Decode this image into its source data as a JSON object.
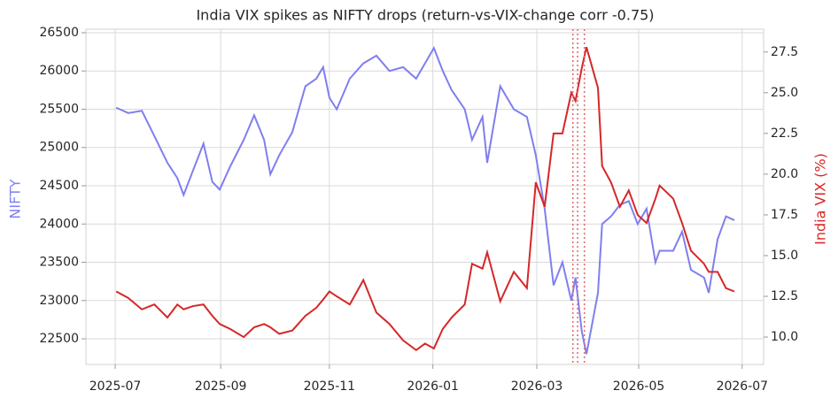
{
  "chart_data": {
    "type": "line",
    "title": "India VIX spikes as NIFTY drops (return-vs-VIX-change corr -0.75)",
    "ylabel": "NIFTY",
    "y2label": "India VIX (%)",
    "x": [
      0.02,
      0.25,
      0.51,
      0.75,
      1.0,
      1.19,
      1.31,
      1.49,
      1.69,
      1.86,
      2.0,
      2.2,
      2.46,
      2.66,
      2.85,
      2.97,
      3.14,
      3.39,
      3.64,
      3.85,
      3.98,
      4.1,
      4.24,
      4.49,
      4.75,
      5.0,
      5.25,
      5.51,
      5.76,
      5.93,
      6.1,
      6.27,
      6.44,
      6.69,
      6.83,
      7.03,
      7.12,
      7.37,
      7.63,
      7.88,
      8.05,
      8.22,
      8.39,
      8.56,
      8.73,
      8.81,
      8.93,
      9.02,
      9.24,
      9.32,
      9.49,
      9.66,
      9.83,
      10.0,
      10.17,
      10.34,
      10.42,
      10.68,
      10.85,
      11.02,
      11.27,
      11.36,
      11.53,
      11.69,
      11.85
    ],
    "series": [
      {
        "name": "NIFTY",
        "color": "#7f7fef",
        "axis": "y",
        "values": [
          25520,
          25450,
          25480,
          25150,
          24800,
          24600,
          24380,
          24700,
          25050,
          24550,
          24450,
          24750,
          25100,
          25420,
          25100,
          24650,
          24900,
          25200,
          25800,
          25900,
          26050,
          25650,
          25500,
          25900,
          26100,
          26200,
          26000,
          26050,
          25900,
          26100,
          26300,
          26000,
          25750,
          25500,
          25100,
          25400,
          24800,
          25800,
          25500,
          25400,
          24900,
          24200,
          23200,
          23500,
          23000,
          23300,
          22600,
          22300,
          23100,
          24000,
          24100,
          24250,
          24300,
          24000,
          24200,
          23500,
          23650,
          23650,
          23900,
          23400,
          23300,
          23100,
          23800,
          24100,
          24050
        ]
      },
      {
        "name": "India VIX",
        "color": "#d62728",
        "axis": "y2",
        "values": [
          12.8,
          12.4,
          11.7,
          12.0,
          11.2,
          12.0,
          11.7,
          11.9,
          12.0,
          11.3,
          10.8,
          10.5,
          10.0,
          10.6,
          10.8,
          10.6,
          10.2,
          10.4,
          11.3,
          11.8,
          12.3,
          12.8,
          12.5,
          12.0,
          13.5,
          11.5,
          10.8,
          9.8,
          9.2,
          9.6,
          9.3,
          10.5,
          11.2,
          12.0,
          14.5,
          14.2,
          15.2,
          12.2,
          14.0,
          13.0,
          19.5,
          18.0,
          22.5,
          22.5,
          25.0,
          24.5,
          26.5,
          27.8,
          25.3,
          20.5,
          19.5,
          18.0,
          19.0,
          17.5,
          17.0,
          18.5,
          19.3,
          18.5,
          17.0,
          15.3,
          14.5,
          14.0,
          14.0,
          13.0,
          12.8
        ]
      }
    ],
    "event_lines": {
      "color": "#e06666",
      "x": [
        8.76,
        8.85,
        8.98
      ]
    },
    "xlim": [
      -0.56,
      12.41
    ],
    "xticks": [
      {
        "value": 0,
        "label": "2025-07"
      },
      {
        "value": 2.02,
        "label": "2025-09"
      },
      {
        "value": 4.1,
        "label": "2025-11"
      },
      {
        "value": 6.08,
        "label": "2026-01"
      },
      {
        "value": 8.07,
        "label": "2026-03"
      },
      {
        "value": 10.02,
        "label": "2026-05"
      },
      {
        "value": 12.0,
        "label": "2026-07"
      }
    ],
    "ylim": [
      22165,
      26546
    ],
    "yticks": [
      22500,
      23000,
      23500,
      24000,
      24500,
      25000,
      25500,
      26000,
      26500
    ],
    "y2lim": [
      8.32,
      28.9
    ],
    "y2ticks": [
      {
        "value": 10,
        "label": "10.0"
      },
      12.5,
      {
        "value": 15,
        "label": "15.0"
      },
      17.5,
      {
        "value": 20,
        "label": "20.0"
      },
      22.5,
      {
        "value": 25,
        "label": "25.0"
      },
      27.5
    ],
    "grid": true
  }
}
